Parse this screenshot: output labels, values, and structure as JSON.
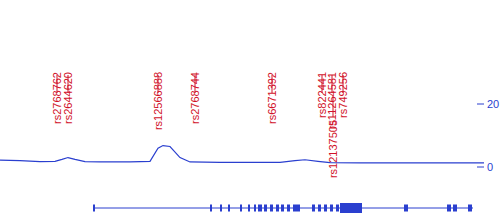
{
  "chart_data": {
    "type": "line",
    "xlim": [
      0,
      484
    ],
    "ylim": [
      0,
      20
    ],
    "yticks": [
      0,
      20
    ],
    "tick_labels": "y",
    "x": [
      0,
      20,
      40,
      55,
      62,
      68,
      75,
      85,
      100,
      130,
      150,
      158,
      163,
      170,
      180,
      190,
      220,
      250,
      280,
      295,
      305,
      318,
      330,
      360,
      400,
      440,
      484
    ],
    "series": [
      {
        "color": "#2a3fcf",
        "values": [
          2.2,
          2.0,
          1.7,
          1.8,
          2.4,
          3.0,
          2.4,
          1.7,
          1.6,
          1.6,
          1.8,
          6.0,
          6.8,
          6.5,
          3.0,
          1.6,
          1.5,
          1.5,
          1.5,
          2.0,
          2.3,
          1.8,
          1.4,
          1.3,
          1.3,
          1.3,
          1.3
        ]
      }
    ],
    "annotations": [
      {
        "text": "rs2768762",
        "x": 57,
        "color": "#d1122a"
      },
      {
        "text": "rs2644620",
        "x": 68,
        "color": "#d1122a"
      },
      {
        "text": "rs12566888",
        "x": 158,
        "color": "#d1122a"
      },
      {
        "text": "rs2768744",
        "x": 195,
        "color": "#d1122a"
      },
      {
        "text": "rs6671392",
        "x": 272,
        "color": "#d1122a"
      },
      {
        "text": "rs822441",
        "x": 322,
        "color": "#d1122a"
      },
      {
        "text": "rs11264581",
        "x": 332,
        "color": "#d1122a"
      },
      {
        "text": "rs12137505",
        "x": 333,
        "color": "#d1122a"
      },
      {
        "text": "rs749256",
        "x": 343,
        "color": "#d1122a"
      }
    ],
    "gene": {
      "start": 93,
      "end": 473,
      "color": "#2a3fcf",
      "exons": [
        [
          93,
          95
        ],
        [
          210,
          212
        ],
        [
          220,
          222
        ],
        [
          228,
          230
        ],
        [
          240,
          242
        ],
        [
          248,
          250
        ],
        [
          254,
          256
        ],
        [
          258,
          262
        ],
        [
          264,
          267
        ],
        [
          270,
          273
        ],
        [
          276,
          279
        ],
        [
          281,
          284
        ],
        [
          287,
          290
        ],
        [
          293,
          300
        ],
        [
          312,
          315
        ],
        [
          318,
          321
        ],
        [
          324,
          327
        ],
        [
          330,
          333
        ],
        [
          336,
          339
        ],
        [
          340,
          362
        ],
        [
          404,
          408
        ],
        [
          447,
          451
        ],
        [
          453,
          457
        ],
        [
          468,
          472
        ]
      ]
    }
  }
}
